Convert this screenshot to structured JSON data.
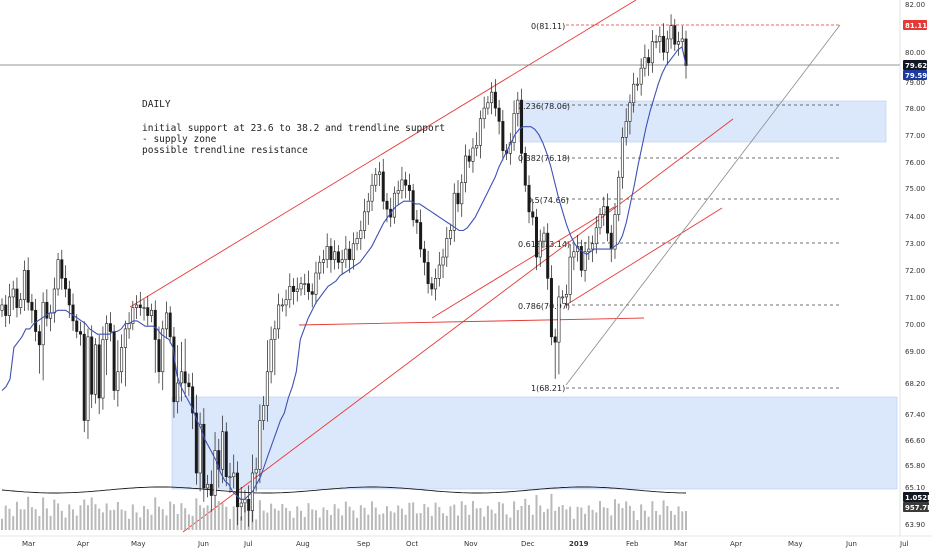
{
  "chart_data": {
    "type": "candlestick",
    "annotation": {
      "title": "DAILY",
      "lines": [
        "initial support at 23.6 to 38.2 and trendline support",
        "- supply zone",
        "possible trendline resistance"
      ]
    },
    "x_ticks": [
      "Mar",
      "Apr",
      "May",
      "Jun",
      "Jul",
      "Aug",
      "Sep",
      "Oct",
      "Nov",
      "Dec",
      "2019",
      "Feb",
      "Mar",
      "Apr",
      "May",
      "Jun",
      "Jul"
    ],
    "y_ticks": [
      "82.00",
      "81.00",
      "80.00",
      "79.00",
      "78.00",
      "77.00",
      "76.00",
      "75.00",
      "74.00",
      "73.00",
      "72.00",
      "71.00",
      "70.00",
      "69.00",
      "68.20",
      "67.40",
      "66.60",
      "65.80",
      "65.10",
      "63.90"
    ],
    "y_ticks_values": [
      82.0,
      81.0,
      80.0,
      79.0,
      78.0,
      77.0,
      76.0,
      75.0,
      74.0,
      73.0,
      72.0,
      71.0,
      70.0,
      69.0,
      68.2,
      67.4,
      66.6,
      65.8,
      65.1,
      63.9
    ],
    "price_badges": [
      {
        "text": "81.11",
        "color": "#e53935"
      },
      {
        "text": "79.62",
        "color": "#131722"
      },
      {
        "text": "79.59",
        "color": "#1e3a9e"
      },
      {
        "text": "1.052M",
        "color": "#131722"
      },
      {
        "text": "957.7K",
        "color": "#3a3a3a"
      }
    ],
    "fib_levels": [
      {
        "label": "0(81.11)",
        "value": 81.11
      },
      {
        "label": "0.236(78.06)",
        "value": 78.06
      },
      {
        "label": "0.382(76.18)",
        "value": 76.18
      },
      {
        "label": "0.5(74.66)",
        "value": 74.66
      },
      {
        "label": "0.618(73.14)",
        "value": 73.14
      },
      {
        "label": "0.786(70.97)",
        "value": 70.97
      },
      {
        "label": "1(68.21)",
        "value": 68.21
      }
    ],
    "supply_zones": [
      {
        "from": 76.7,
        "to": 78.2
      },
      {
        "from": 65.05,
        "to": 67.9
      }
    ],
    "colors": {
      "up": "#26a69a",
      "down": "#ef5350",
      "candle": "#1a1a1a",
      "ma": "#3f51b5",
      "trend": "#e53935",
      "zone": "#dbe7fb",
      "volume": "#b9b9b9"
    },
    "close_series": [
      70.6,
      70.2,
      70.9,
      71.2,
      70.5,
      70.8,
      71.9,
      70.7,
      70.4,
      69.6,
      69.1,
      70.7,
      70.1,
      70.3,
      71.2,
      72.3,
      71.6,
      71.2,
      70.6,
      70.0,
      69.6,
      69.5,
      67.6,
      69.4,
      68.3,
      69.1,
      68.2,
      69.3,
      69.9,
      69.6,
      68.4,
      68.9,
      69.0,
      69.7,
      69.9,
      70.5,
      70.6,
      70.5,
      70.5,
      70.2,
      70.4,
      69.3,
      68.9,
      69.7,
      70.3,
      69.4,
      68.1,
      68.6,
      68.9,
      68.6,
      68.5,
      67.8,
      66.2,
      67.5,
      65.8,
      65.9,
      65.6,
      66.8,
      66.3,
      67.3,
      66.1,
      66.1,
      66.2,
      65.3,
      65.4,
      65.5,
      65.2,
      66.2,
      66.3,
      67.6,
      68.0,
      68.9,
      69.3,
      69.7,
      70.6,
      70.6,
      70.8,
      71.3,
      71.1,
      71.2,
      71.4,
      71.4,
      71.1,
      71.0,
      71.8,
      72.2,
      72.3,
      72.8,
      72.3,
      72.6,
      72.2,
      72.3,
      72.7,
      72.3,
      72.9,
      73.1,
      73.4,
      74.1,
      74.5,
      75.1,
      75.5,
      75.6,
      74.5,
      74.2,
      73.9,
      74.8,
      74.9,
      75.3,
      75.1,
      74.9,
      73.8,
      73.7,
      72.7,
      72.2,
      71.4,
      71.2,
      71.6,
      72.1,
      72.4,
      73.1,
      73.4,
      74.8,
      74.4,
      75.2,
      76.2,
      76.0,
      76.5,
      76.6,
      77.6,
      78.0,
      78.2,
      78.6,
      78.0,
      77.5,
      76.4,
      76.3,
      76.7,
      77.8,
      78.3,
      76.3,
      75.1,
      74.1,
      73.9,
      72.4,
      73.0,
      73.3,
      71.6,
      69.4,
      69.2,
      70.9,
      70.9,
      71.0,
      72.4,
      72.6,
      72.8,
      71.9,
      72.6,
      72.7,
      72.9,
      73.5,
      74.0,
      74.3,
      73.3,
      72.7,
      74.0,
      75.4,
      76.9,
      77.5,
      78.2,
      78.9,
      78.9,
      79.5,
      79.9,
      79.7,
      80.5,
      80.5,
      80.7,
      80.1,
      80.6,
      81.1,
      80.4,
      80.5,
      80.6,
      79.6
    ],
    "ma_series": [
      68.4,
      68.5,
      68.7,
      69.0,
      69.2,
      69.4,
      69.7,
      69.7,
      69.9,
      70.0,
      70.1,
      70.2,
      70.3,
      70.3,
      70.4,
      70.4,
      70.4,
      70.3,
      70.2,
      70.1,
      70.0,
      69.9,
      69.7,
      69.6,
      69.5,
      69.5,
      69.5,
      69.5,
      69.6,
      69.6,
      69.7,
      69.9,
      69.9,
      70.0,
      70.0,
      69.9,
      69.8,
      69.8,
      69.8,
      69.7,
      69.5,
      69.4,
      69.3,
      69.0,
      68.8,
      68.5,
      68.3,
      68.1,
      67.9,
      67.6,
      67.4,
      67.1,
      66.9,
      66.7,
      66.5,
      66.2,
      66.0,
      65.9,
      65.7,
      65.6,
      65.5,
      65.5,
      65.6,
      65.7,
      65.9,
      66.1,
      66.4,
      66.7,
      67.0,
      67.3,
      67.6,
      67.8,
      68.2,
      68.5,
      68.9,
      69.3,
      69.7,
      70.1,
      70.4,
      70.7,
      70.9,
      71.1,
      71.3,
      71.4,
      71.5,
      71.7,
      71.8,
      71.9,
      72.0,
      72.1,
      72.2,
      72.4,
      72.6,
      72.8,
      73.1,
      73.4,
      73.7,
      73.9,
      74.1,
      74.3,
      74.4,
      74.5,
      74.5,
      74.5,
      74.4,
      74.4,
      74.3,
      74.2,
      74.1,
      74.0,
      73.9,
      73.8,
      73.7,
      73.6,
      73.5,
      73.4,
      73.4,
      73.5,
      73.7,
      73.9,
      74.2,
      74.5,
      74.8,
      75.1,
      75.4,
      75.8,
      76.1,
      76.4,
      76.7,
      77.0,
      77.2,
      77.3,
      77.3,
      77.3,
      77.2,
      77.0,
      76.7,
      76.3,
      75.8,
      75.2,
      74.6,
      74.1,
      73.6,
      73.2,
      72.9,
      72.7,
      72.6,
      72.5,
      72.6,
      72.7,
      72.7,
      72.7,
      72.7,
      72.7,
      72.8,
      72.9,
      73.2,
      73.7,
      74.4,
      75.1,
      75.9,
      76.6,
      77.3,
      77.9,
      78.4,
      78.9,
      79.3,
      79.6,
      79.8,
      80.0,
      80.2,
      80.3,
      79.6
    ]
  }
}
